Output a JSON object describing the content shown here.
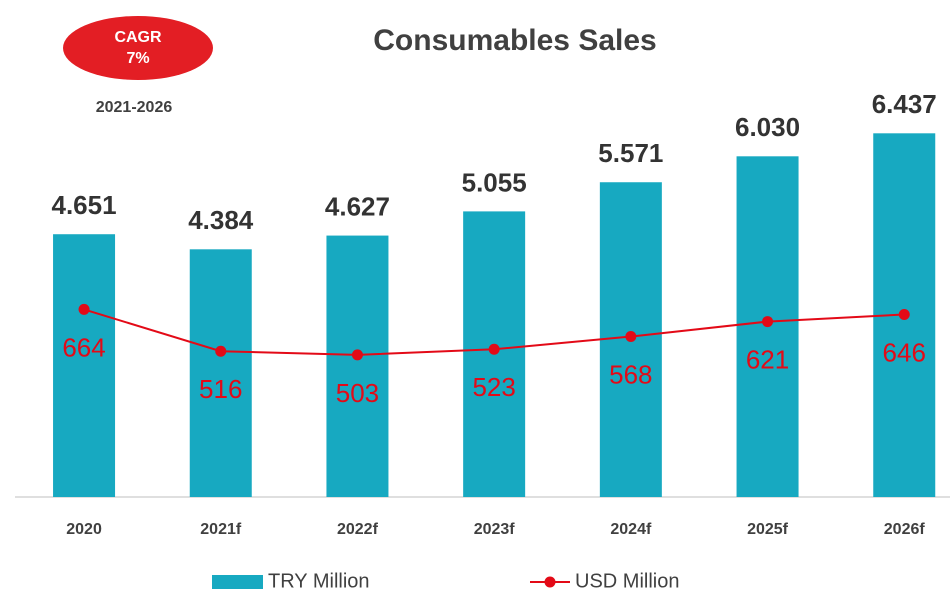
{
  "chart_data": {
    "type": "bar_line",
    "title": "Consumables Sales",
    "annotations": {
      "badge_title": "CAGR",
      "badge_value": "7%",
      "period": "2021-2026"
    },
    "categories": [
      "2020",
      "2021f",
      "2022f",
      "2023f",
      "2024f",
      "2025f",
      "2026f"
    ],
    "series": [
      {
        "name": "TRY Million",
        "type": "bar",
        "color": "#17a9c1",
        "values": [
          4651,
          4384,
          4627,
          5055,
          5571,
          6030,
          6437
        ],
        "value_labels": [
          "4.651",
          "4.384",
          "4.627",
          "5.055",
          "5.571",
          "6.030",
          "6.437"
        ]
      },
      {
        "name": "USD Million",
        "type": "line",
        "axis": "y2",
        "color": "#e30a17",
        "values": [
          664,
          516,
          503,
          523,
          568,
          621,
          646
        ]
      }
    ],
    "ylim": [
      0,
      8000
    ],
    "y2lim": [
      0,
      1600
    ],
    "legend": "bottom"
  }
}
